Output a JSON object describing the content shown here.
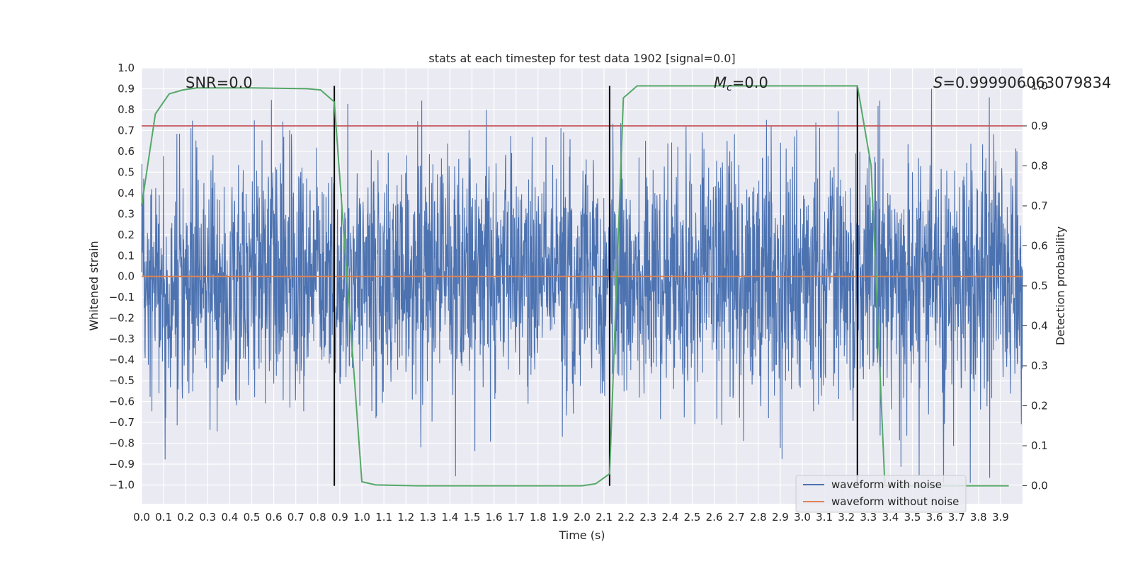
{
  "chart_data": {
    "type": "line",
    "title": "stats at each timestep for test data 1902 [signal=0.0]",
    "xlabel": "Time (s)",
    "ylabel": "Whitened strain",
    "y2label": "Detection probability",
    "xlim": [
      0.0,
      4.0
    ],
    "ylim": [
      -1.09,
      1.0
    ],
    "y2lim": [
      -0.045,
      1.045
    ],
    "x_ticks": [
      0.0,
      0.1,
      0.2,
      0.3,
      0.4,
      0.5,
      0.6,
      0.7,
      0.8,
      0.9,
      1.0,
      1.1,
      1.2,
      1.3,
      1.4,
      1.5,
      1.6,
      1.7,
      1.8,
      1.9,
      2.0,
      2.1,
      2.2,
      2.3,
      2.4,
      2.5,
      2.6,
      2.7,
      2.8,
      2.9,
      3.0,
      3.1,
      3.2,
      3.3,
      3.4,
      3.5,
      3.6,
      3.7,
      3.8,
      3.9
    ],
    "x_tick_labels": [
      "0.0",
      "0.1",
      "0.2",
      "0.3",
      "0.4",
      "0.5",
      "0.6",
      "0.7",
      "0.8",
      "0.9",
      "1.0",
      "1.1",
      "1.2",
      "1.3",
      "1.4",
      "1.5",
      "1.6",
      "1.7",
      "1.8",
      "1.9",
      "2.0",
      "2.1",
      "2.2",
      "2.3",
      "2.4",
      "2.5",
      "2.6",
      "2.7",
      "2.8",
      "2.9",
      "3.0",
      "3.1",
      "3.2",
      "3.3",
      "3.4",
      "3.5",
      "3.6",
      "3.7",
      "3.8",
      "3.9"
    ],
    "y_ticks": [
      1.0,
      0.9,
      0.8,
      0.7,
      0.6,
      0.5,
      0.4,
      0.3,
      0.2,
      0.1,
      0.0,
      -0.1,
      -0.2,
      -0.3,
      -0.4,
      -0.5,
      -0.6,
      -0.7,
      -0.8,
      -0.9,
      -1.0
    ],
    "y_tick_labels": [
      "1.0",
      "0.9",
      "0.8",
      "0.7",
      "0.6",
      "0.5",
      "0.4",
      "0.3",
      "0.2",
      "0.1",
      "0.0",
      "−0.1",
      "−0.2",
      "−0.3",
      "−0.4",
      "−0.5",
      "−0.6",
      "−0.7",
      "−0.8",
      "−0.9",
      "−1.0"
    ],
    "y2_ticks": [
      1.0,
      0.9,
      0.8,
      0.7,
      0.6,
      0.5,
      0.4,
      0.3,
      0.2,
      0.1,
      0.0
    ],
    "y2_tick_labels": [
      "1.0",
      "0.9",
      "0.8",
      "0.7",
      "0.6",
      "0.5",
      "0.4",
      "0.3",
      "0.2",
      "0.1",
      "0.0"
    ],
    "annotations": {
      "snr": "SNR=0.0",
      "mc_symbol": "M",
      "mc_sub": "c",
      "mc_value": "=0.0",
      "s_symbol": "S",
      "s_value": "=0.999906063079834"
    },
    "threshold_prob": 0.9,
    "vertical_lines_x": [
      0.875,
      2.125,
      3.25
    ],
    "series": [
      {
        "name": "waveform with noise",
        "color": "#4c72b0",
        "axis": "left",
        "noise_std": 0.3,
        "x_range": [
          0.0,
          4.0
        ]
      },
      {
        "name": "waveform without noise",
        "color": "#dd8452",
        "axis": "left",
        "x": [
          0.0,
          4.0
        ],
        "y": [
          0.0,
          0.0
        ]
      },
      {
        "name": "detection probability",
        "color": "#55a868",
        "axis": "right",
        "x": [
          0.0,
          0.0625,
          0.125,
          0.1875,
          0.25,
          0.5,
          0.75,
          0.8125,
          0.875,
          1.0,
          1.0625,
          1.25,
          1.5,
          1.75,
          2.0,
          2.0625,
          2.125,
          2.1875,
          2.25,
          2.5,
          3.0,
          3.1875,
          3.25,
          3.3125,
          3.375,
          3.4375,
          3.5,
          3.75,
          3.9375
        ],
        "y": [
          0.7,
          0.93,
          0.98,
          0.99,
          0.995,
          0.995,
          0.993,
          0.99,
          0.96,
          0.01,
          0.002,
          0.0,
          0.0,
          0.0,
          0.0,
          0.005,
          0.03,
          0.97,
          1.0,
          1.0,
          1.0,
          1.0,
          1.0,
          0.8,
          0.0,
          0.0,
          0.0,
          0.0,
          0.0
        ]
      }
    ],
    "legend": {
      "position": "lower-right",
      "entries": [
        "waveform with noise",
        "waveform without noise"
      ]
    },
    "colors": {
      "threshold": "#c44e52",
      "vlines": "#000000",
      "axes_bg": "#eaeaf2",
      "grid": "#ffffff"
    }
  }
}
